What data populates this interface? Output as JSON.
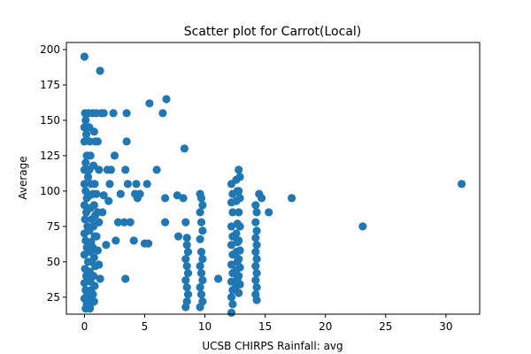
{
  "chart_data": {
    "type": "scatter",
    "title": "Scatter plot for Carrot(Local)",
    "xlabel": "UCSB CHIRPS Rainfall: avg",
    "ylabel": "Average",
    "xlim": [
      -1.5,
      32.8
    ],
    "ylim": [
      13,
      205
    ],
    "xticks": [
      0,
      5,
      10,
      15,
      20,
      25,
      30
    ],
    "yticks": [
      25,
      50,
      75,
      100,
      125,
      150,
      175,
      200
    ],
    "grid": false,
    "marker_color": "#1f77b4",
    "points": [
      [
        0.0,
        195
      ],
      [
        0.05,
        155
      ],
      [
        0.1,
        150
      ],
      [
        0.0,
        145
      ],
      [
        0.15,
        140
      ],
      [
        0.0,
        135
      ],
      [
        0.2,
        125
      ],
      [
        0.1,
        120
      ],
      [
        0.0,
        115
      ],
      [
        0.3,
        110
      ],
      [
        0.0,
        105
      ],
      [
        0.1,
        100
      ],
      [
        0.2,
        95
      ],
      [
        0.0,
        90
      ],
      [
        0.15,
        85
      ],
      [
        0.05,
        80
      ],
      [
        0.25,
        75
      ],
      [
        0.0,
        70
      ],
      [
        0.1,
        65
      ],
      [
        0.2,
        60
      ],
      [
        0.0,
        55
      ],
      [
        0.3,
        50
      ],
      [
        0.05,
        45
      ],
      [
        0.15,
        40
      ],
      [
        0.0,
        35
      ],
      [
        0.1,
        30
      ],
      [
        0.25,
        27
      ],
      [
        0.0,
        24
      ],
      [
        0.2,
        20
      ],
      [
        0.1,
        17
      ],
      [
        0.35,
        155
      ],
      [
        0.4,
        145
      ],
      [
        0.45,
        135
      ],
      [
        0.5,
        125
      ],
      [
        0.4,
        115
      ],
      [
        0.55,
        105
      ],
      [
        0.45,
        97
      ],
      [
        0.5,
        88
      ],
      [
        0.6,
        80
      ],
      [
        0.4,
        72
      ],
      [
        0.55,
        64
      ],
      [
        0.5,
        57
      ],
      [
        0.6,
        50
      ],
      [
        0.45,
        43
      ],
      [
        0.5,
        36
      ],
      [
        0.55,
        30
      ],
      [
        0.4,
        25
      ],
      [
        0.5,
        20
      ],
      [
        0.45,
        17
      ],
      [
        0.7,
        155
      ],
      [
        0.8,
        142
      ],
      [
        0.9,
        135
      ],
      [
        0.75,
        118
      ],
      [
        0.85,
        105
      ],
      [
        0.7,
        98
      ],
      [
        0.8,
        90
      ],
      [
        0.9,
        83
      ],
      [
        0.75,
        75
      ],
      [
        0.85,
        68
      ],
      [
        0.7,
        60
      ],
      [
        0.8,
        53
      ],
      [
        0.9,
        47
      ],
      [
        0.75,
        40
      ],
      [
        0.85,
        33
      ],
      [
        0.7,
        27
      ],
      [
        0.8,
        22
      ],
      [
        1.0,
        155
      ],
      [
        1.1,
        135
      ],
      [
        1.2,
        115
      ],
      [
        1.0,
        98
      ],
      [
        1.1,
        85
      ],
      [
        1.2,
        78
      ],
      [
        1.0,
        68
      ],
      [
        1.1,
        58
      ],
      [
        1.2,
        48
      ],
      [
        1.3,
        38
      ],
      [
        1.3,
        185
      ],
      [
        1.4,
        155
      ],
      [
        1.6,
        155
      ],
      [
        1.5,
        85
      ],
      [
        1.6,
        97
      ],
      [
        1.8,
        62
      ],
      [
        1.9,
        115
      ],
      [
        2.0,
        93
      ],
      [
        2.1,
        105
      ],
      [
        2.2,
        115
      ],
      [
        2.4,
        155
      ],
      [
        2.5,
        125
      ],
      [
        2.6,
        65
      ],
      [
        2.8,
        78
      ],
      [
        3.0,
        98
      ],
      [
        3.3,
        78
      ],
      [
        3.4,
        115
      ],
      [
        3.5,
        135
      ],
      [
        3.6,
        105
      ],
      [
        3.5,
        155
      ],
      [
        3.4,
        38
      ],
      [
        3.8,
        78
      ],
      [
        4.1,
        65
      ],
      [
        4.3,
        105
      ],
      [
        4.2,
        98
      ],
      [
        4.4,
        95
      ],
      [
        4.6,
        98
      ],
      [
        5.0,
        63
      ],
      [
        5.2,
        105
      ],
      [
        5.3,
        63
      ],
      [
        5.4,
        162
      ],
      [
        6.0,
        115
      ],
      [
        6.5,
        155
      ],
      [
        6.7,
        95
      ],
      [
        6.7,
        78
      ],
      [
        6.8,
        165
      ],
      [
        7.7,
        97
      ],
      [
        7.8,
        68
      ],
      [
        8.2,
        95
      ],
      [
        8.3,
        130
      ],
      [
        8.4,
        78
      ],
      [
        8.5,
        67
      ],
      [
        8.5,
        62
      ],
      [
        8.6,
        57
      ],
      [
        8.4,
        52
      ],
      [
        8.5,
        47
      ],
      [
        8.6,
        42
      ],
      [
        8.4,
        37
      ],
      [
        8.5,
        32
      ],
      [
        8.6,
        27
      ],
      [
        8.5,
        22
      ],
      [
        8.4,
        18
      ],
      [
        9.6,
        98
      ],
      [
        9.7,
        95
      ],
      [
        9.8,
        90
      ],
      [
        9.6,
        85
      ],
      [
        9.7,
        78
      ],
      [
        9.8,
        72
      ],
      [
        9.6,
        66
      ],
      [
        9.7,
        57
      ],
      [
        9.8,
        52
      ],
      [
        9.6,
        47
      ],
      [
        9.7,
        42
      ],
      [
        9.8,
        37
      ],
      [
        9.6,
        32
      ],
      [
        9.7,
        27
      ],
      [
        9.8,
        22
      ],
      [
        9.6,
        18
      ],
      [
        11.1,
        38
      ],
      [
        12.2,
        105
      ],
      [
        12.3,
        98
      ],
      [
        12.2,
        92
      ],
      [
        12.3,
        85
      ],
      [
        12.2,
        75
      ],
      [
        12.3,
        68
      ],
      [
        12.2,
        62
      ],
      [
        12.3,
        55
      ],
      [
        12.2,
        48
      ],
      [
        12.3,
        42
      ],
      [
        12.2,
        36
      ],
      [
        12.3,
        30
      ],
      [
        12.2,
        25
      ],
      [
        12.3,
        20
      ],
      [
        12.2,
        14
      ],
      [
        12.6,
        108
      ],
      [
        12.7,
        100
      ],
      [
        12.6,
        93
      ],
      [
        12.7,
        77
      ],
      [
        12.6,
        70
      ],
      [
        12.7,
        64
      ],
      [
        12.6,
        57
      ],
      [
        12.7,
        50
      ],
      [
        12.6,
        44
      ],
      [
        12.7,
        38
      ],
      [
        12.6,
        33
      ],
      [
        12.8,
        115
      ],
      [
        12.9,
        110
      ],
      [
        12.8,
        100
      ],
      [
        12.9,
        95
      ],
      [
        12.8,
        85
      ],
      [
        12.9,
        75
      ],
      [
        12.8,
        65
      ],
      [
        12.9,
        58
      ],
      [
        12.8,
        52
      ],
      [
        12.9,
        46
      ],
      [
        12.8,
        40
      ],
      [
        12.9,
        34
      ],
      [
        12.8,
        28
      ],
      [
        14.2,
        90
      ],
      [
        14.3,
        85
      ],
      [
        14.2,
        78
      ],
      [
        14.3,
        72
      ],
      [
        14.2,
        67
      ],
      [
        14.3,
        62
      ],
      [
        14.2,
        57
      ],
      [
        14.3,
        52
      ],
      [
        14.2,
        47
      ],
      [
        14.3,
        42
      ],
      [
        14.2,
        37
      ],
      [
        14.3,
        32
      ],
      [
        14.2,
        27
      ],
      [
        14.3,
        23
      ],
      [
        14.5,
        98
      ],
      [
        14.7,
        95
      ],
      [
        15.3,
        85
      ],
      [
        17.2,
        95
      ],
      [
        23.1,
        75
      ],
      [
        31.3,
        105
      ]
    ]
  }
}
